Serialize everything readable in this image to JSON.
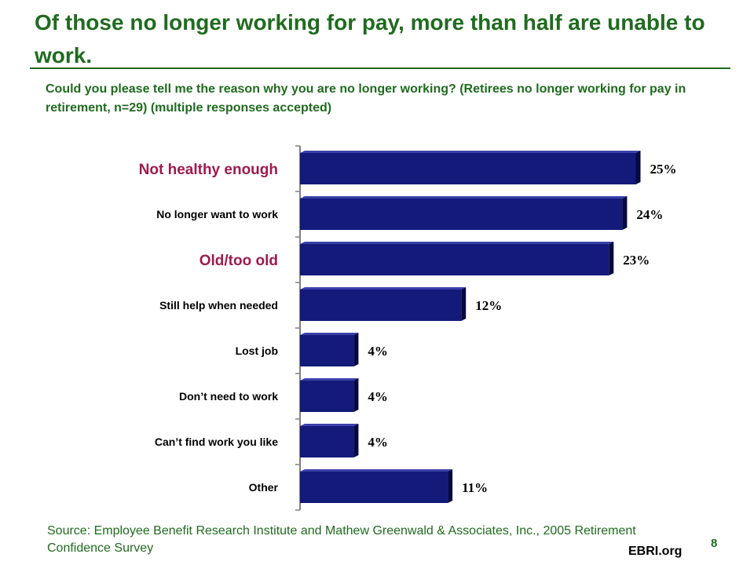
{
  "slide": {
    "title": "Of those no longer working for pay, more than half are unable to work.",
    "subtitle": "Could you please tell me the reason why you are no longer working? (Retirees no longer working for pay in retirement, n=29) (multiple responses accepted)",
    "source": "Source: Employee Benefit Research Institute and Mathew Greenwald & Associates, Inc., 2005 Retirement Confidence Survey",
    "brand": "EBRI.org",
    "page_number": "8"
  },
  "colors": {
    "title_green": "#1f6b1f",
    "bar_fill": "#141a7a",
    "highlight_label": "#9e1b4f",
    "axis": "#808080"
  },
  "chart_data": {
    "type": "bar",
    "orientation": "horizontal",
    "categories": [
      "Not healthy enough",
      "No longer want to work",
      "Old/too old",
      "Still help when needed",
      "Lost job",
      "Don’t need to work",
      "Can’t find work you like",
      "Other"
    ],
    "values": [
      25,
      24,
      23,
      12,
      4,
      4,
      4,
      11
    ],
    "data_labels": [
      "25%",
      "24%",
      "23%",
      "12%",
      "4%",
      "4%",
      "4%",
      "11%"
    ],
    "highlighted": [
      true,
      false,
      true,
      false,
      false,
      false,
      false,
      false
    ],
    "xlim": [
      0,
      26
    ],
    "unit": "%",
    "grid": false,
    "legend": "none"
  }
}
